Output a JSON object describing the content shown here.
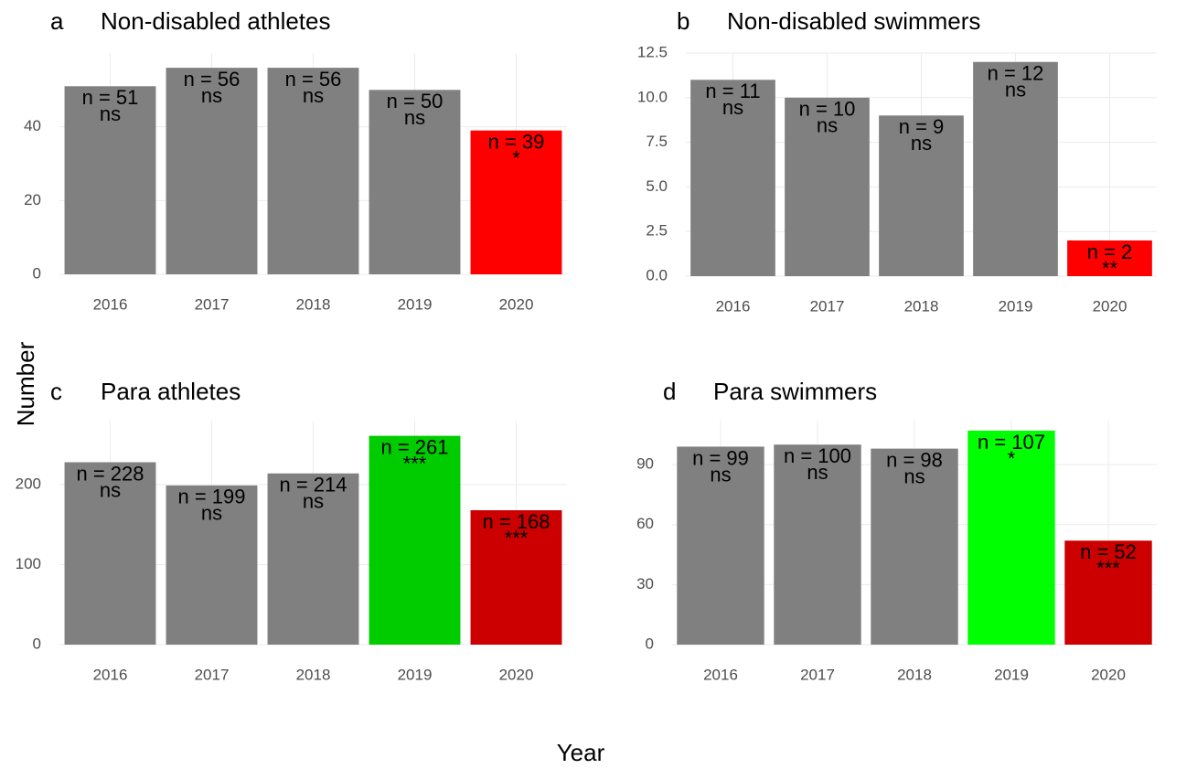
{
  "y_label": "Number",
  "x_label": "Year",
  "chart_data": [
    {
      "type": "bar",
      "tag": "a",
      "title": "Non-disabled athletes",
      "categories": [
        "2016",
        "2017",
        "2018",
        "2019",
        "2020"
      ],
      "values": [
        51,
        56,
        56,
        50,
        39
      ],
      "value_labels": [
        "n = 51",
        "n = 56",
        "n = 56",
        "n = 50",
        "n = 39"
      ],
      "significance": [
        "ns",
        "ns",
        "ns",
        "ns",
        "*"
      ],
      "colors": [
        "#808080",
        "#808080",
        "#808080",
        "#808080",
        "#ff0000"
      ],
      "ylim": [
        0,
        60
      ],
      "yticks": [
        0,
        20,
        40
      ],
      "grid": true
    },
    {
      "type": "bar",
      "tag": "b",
      "title": "Non-disabled swimmers",
      "categories": [
        "2016",
        "2017",
        "2018",
        "2019",
        "2020"
      ],
      "values": [
        11,
        10,
        9,
        12,
        2
      ],
      "value_labels": [
        "n = 11",
        "n = 10",
        "n = 9",
        "n = 12",
        "n = 2"
      ],
      "significance": [
        "ns",
        "ns",
        "ns",
        "ns",
        "**"
      ],
      "colors": [
        "#808080",
        "#808080",
        "#808080",
        "#808080",
        "#ff0000"
      ],
      "ylim": [
        0,
        12.5
      ],
      "yticks": [
        {
          "value": 0,
          "label": "0.0"
        },
        2.5,
        {
          "value": 5,
          "label": "5.0"
        },
        7.5,
        {
          "value": 10,
          "label": "10.0"
        },
        12.5
      ],
      "grid": true
    },
    {
      "type": "bar",
      "tag": "c",
      "title": "Para athletes",
      "categories": [
        "2016",
        "2017",
        "2018",
        "2019",
        "2020"
      ],
      "values": [
        228,
        199,
        214,
        261,
        168
      ],
      "value_labels": [
        "n = 228",
        "n = 199",
        "n = 214",
        "n = 261",
        "n = 168"
      ],
      "significance": [
        "ns",
        "ns",
        "ns",
        "***",
        "***"
      ],
      "colors": [
        "#808080",
        "#808080",
        "#808080",
        "#00cc00",
        "#cc0000"
      ],
      "ylim": [
        0,
        280
      ],
      "yticks": [
        0,
        100,
        200
      ],
      "grid": true
    },
    {
      "type": "bar",
      "tag": "d",
      "title": "Para swimmers",
      "categories": [
        "2016",
        "2017",
        "2018",
        "2019",
        "2020"
      ],
      "values": [
        99,
        100,
        98,
        107,
        52
      ],
      "value_labels": [
        "n = 99",
        "n = 100",
        "n = 98",
        "n = 107",
        "n = 52"
      ],
      "significance": [
        "ns",
        "ns",
        "ns",
        "*",
        "***"
      ],
      "colors": [
        "#808080",
        "#808080",
        "#808080",
        "#00ff00",
        "#cc0000"
      ],
      "ylim": [
        0,
        112
      ],
      "yticks": [
        0,
        30,
        60,
        90
      ],
      "grid": true
    }
  ]
}
